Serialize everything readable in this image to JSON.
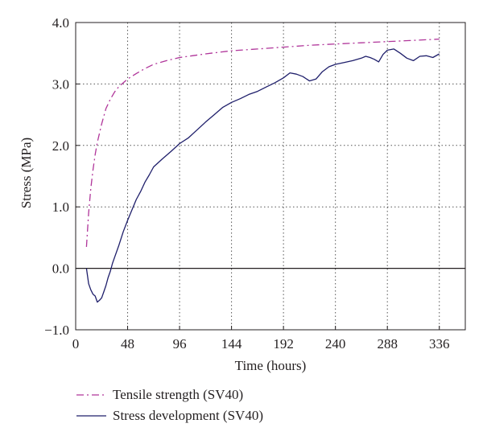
{
  "chart_data": {
    "type": "line",
    "xlabel": "Time (hours)",
    "ylabel": "Stress (MPa)",
    "xlim": [
      0,
      360
    ],
    "ylim": [
      -1.0,
      4.0
    ],
    "x_ticks": [
      0,
      48,
      96,
      144,
      192,
      240,
      288,
      336
    ],
    "y_ticks": [
      -1.0,
      0.0,
      1.0,
      2.0,
      3.0,
      4.0
    ],
    "y_tick_labels": [
      "−1.0",
      "0.0",
      "1.0",
      "2.0",
      "3.0",
      "4.0"
    ],
    "grid": "dotted",
    "legend_position": "bottom",
    "series": [
      {
        "name": "Tensile strength (SV40)",
        "color": "#b0359a",
        "style": "dash-dot",
        "x": [
          10,
          12,
          14,
          16,
          18,
          20,
          24,
          28,
          32,
          36,
          40,
          48,
          56,
          64,
          72,
          84,
          96,
          120,
          144,
          168,
          192,
          216,
          240,
          264,
          288,
          312,
          336
        ],
        "y": [
          0.35,
          0.9,
          1.3,
          1.6,
          1.85,
          2.05,
          2.35,
          2.6,
          2.75,
          2.87,
          2.96,
          3.08,
          3.17,
          3.25,
          3.32,
          3.38,
          3.43,
          3.49,
          3.54,
          3.57,
          3.6,
          3.63,
          3.65,
          3.67,
          3.69,
          3.71,
          3.73
        ]
      },
      {
        "name": "Stress development (SV40)",
        "color": "#1f1f6b",
        "style": "solid",
        "x": [
          10,
          12,
          14,
          16,
          18,
          20,
          22,
          24,
          26,
          28,
          30,
          32,
          34,
          36,
          40,
          44,
          48,
          52,
          56,
          60,
          64,
          68,
          72,
          80,
          88,
          96,
          104,
          112,
          120,
          128,
          136,
          144,
          152,
          160,
          168,
          176,
          184,
          192,
          198,
          204,
          210,
          216,
          222,
          228,
          234,
          240,
          248,
          256,
          264,
          268,
          272,
          276,
          280,
          284,
          288,
          294,
          300,
          306,
          312,
          318,
          324,
          330,
          336
        ],
        "y": [
          0.0,
          -0.25,
          -0.35,
          -0.42,
          -0.45,
          -0.55,
          -0.52,
          -0.48,
          -0.38,
          -0.28,
          -0.15,
          -0.05,
          0.08,
          0.18,
          0.38,
          0.6,
          0.78,
          0.95,
          1.12,
          1.25,
          1.4,
          1.52,
          1.65,
          1.78,
          1.9,
          2.03,
          2.12,
          2.25,
          2.38,
          2.5,
          2.62,
          2.7,
          2.76,
          2.83,
          2.88,
          2.95,
          3.02,
          3.1,
          3.18,
          3.16,
          3.12,
          3.05,
          3.08,
          3.2,
          3.28,
          3.32,
          3.35,
          3.38,
          3.42,
          3.45,
          3.43,
          3.4,
          3.36,
          3.48,
          3.55,
          3.57,
          3.5,
          3.42,
          3.38,
          3.45,
          3.46,
          3.43,
          3.49
        ]
      }
    ]
  }
}
